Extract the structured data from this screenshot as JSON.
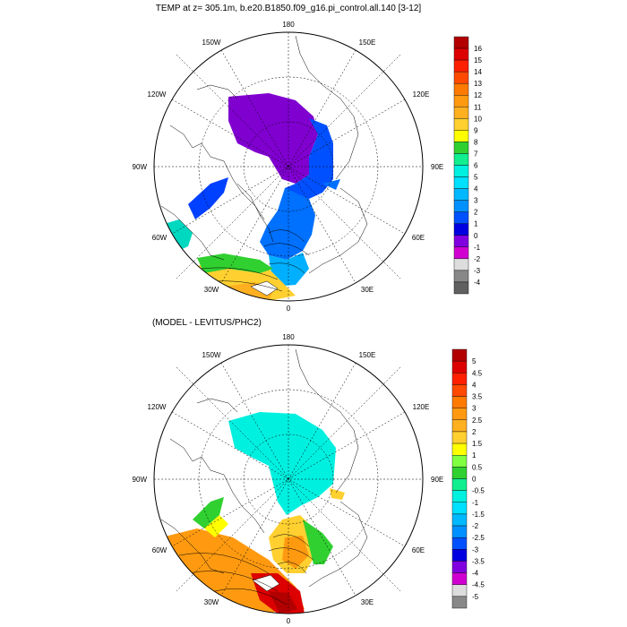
{
  "title": "TEMP at z= 305.1m, b.e20.B1850.f09_g16.pi_control.all.140 [3-12]",
  "subtitle": "(MODEL - LEVITUS/PHC2)",
  "longitude_labels": {
    "top": "180",
    "bottom": "0",
    "left": "90W",
    "right": "90E",
    "upper_left_1": "150W",
    "upper_left_2": "120W",
    "upper_right_1": "150E",
    "upper_right_2": "120E",
    "lower_left_1": "60W",
    "lower_left_2": "30W",
    "lower_right_1": "60E",
    "lower_right_2": "30E"
  },
  "colorbar_top": {
    "labels": [
      "16",
      "15",
      "14",
      "13",
      "12",
      "11",
      "10",
      "9",
      "8",
      "7",
      "6",
      "5",
      "4",
      "3",
      "2",
      "1",
      "0",
      "-1",
      "-2",
      "-3",
      "-4"
    ],
    "colors": [
      "#b20000",
      "#dd0000",
      "#ff2000",
      "#ff4a00",
      "#ff7a00",
      "#ff9a10",
      "#ffb020",
      "#ffd030",
      "#ffff00",
      "#30d030",
      "#10ee90",
      "#00f0e0",
      "#00e0ff",
      "#00b8ff",
      "#0090ff",
      "#0050ff",
      "#0000e0",
      "#8000e0",
      "#d000d0",
      "#dddddd",
      "#888888",
      "#606060"
    ]
  },
  "colorbar_bottom": {
    "labels": [
      "5",
      "4.5",
      "4",
      "3.5",
      "3",
      "2.5",
      "2",
      "1.5",
      "1",
      "0.5",
      "0",
      "-0.5",
      "-1",
      "-1.5",
      "-2",
      "-2.5",
      "-3",
      "-3.5",
      "-4",
      "-4.5",
      "-5"
    ],
    "colors": [
      "#b20000",
      "#dd0000",
      "#ff2000",
      "#ff4a00",
      "#ff7a00",
      "#ff9a10",
      "#ffb020",
      "#ffd030",
      "#ffff00",
      "#80ff40",
      "#30d030",
      "#10ee90",
      "#00f0e0",
      "#00e0ff",
      "#00b8ff",
      "#0090ff",
      "#0050ff",
      "#0000e0",
      "#8000e0",
      "#d000d0",
      "#dddddd",
      "#888888"
    ]
  }
}
